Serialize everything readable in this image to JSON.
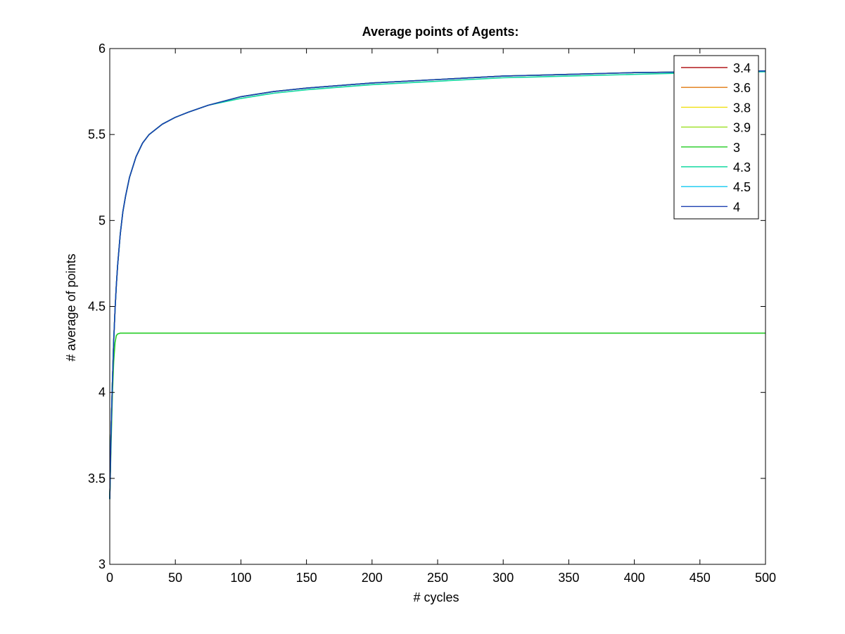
{
  "chart_data": {
    "type": "line",
    "title": "Average points of Agents:",
    "xlabel": "# cycles",
    "ylabel": "# average of points",
    "xlim": [
      0,
      500
    ],
    "ylim": [
      3,
      6
    ],
    "xticks": [
      0,
      50,
      100,
      150,
      200,
      250,
      300,
      350,
      400,
      450,
      500
    ],
    "yticks": [
      3,
      3.5,
      4,
      4.5,
      5,
      5.5,
      6
    ],
    "grid": false,
    "legend_position": "top-right",
    "x": [
      0,
      1,
      2,
      3,
      4,
      5,
      6,
      8,
      10,
      12,
      15,
      20,
      25,
      30,
      40,
      50,
      60,
      75,
      100,
      125,
      150,
      200,
      250,
      300,
      350,
      400,
      450,
      500
    ],
    "series": [
      {
        "name": "3.4",
        "color": "#b2181b",
        "values": [
          3.38,
          3.78,
          4.05,
          4.3,
          4.48,
          4.62,
          4.74,
          4.92,
          5.05,
          5.14,
          5.25,
          5.37,
          5.45,
          5.5,
          5.56,
          5.6,
          5.63,
          5.67,
          5.72,
          5.75,
          5.77,
          5.8,
          5.82,
          5.84,
          5.85,
          5.86,
          5.865,
          5.87
        ]
      },
      {
        "name": "3.6",
        "color": "#e07a10",
        "values": [
          3.38,
          3.78,
          4.05,
          4.3,
          4.48,
          4.62,
          4.74,
          4.92,
          5.05,
          5.14,
          5.25,
          5.37,
          5.45,
          5.5,
          5.56,
          5.6,
          5.63,
          5.67,
          5.72,
          5.75,
          5.77,
          5.8,
          5.82,
          5.84,
          5.85,
          5.86,
          5.865,
          5.87
        ]
      },
      {
        "name": "3.8",
        "color": "#f0e010",
        "values": [
          3.38,
          3.78,
          4.05,
          4.3,
          4.48,
          4.62,
          4.74,
          4.92,
          5.05,
          5.14,
          5.25,
          5.37,
          5.45,
          5.5,
          5.56,
          5.6,
          5.63,
          5.67,
          5.72,
          5.75,
          5.77,
          5.8,
          5.82,
          5.84,
          5.85,
          5.86,
          5.865,
          5.87
        ]
      },
      {
        "name": "3.9",
        "color": "#9be020",
        "values": [
          3.38,
          3.78,
          4.05,
          4.3,
          4.48,
          4.62,
          4.74,
          4.92,
          5.05,
          5.14,
          5.25,
          5.37,
          5.45,
          5.5,
          5.56,
          5.6,
          5.63,
          5.67,
          5.72,
          5.75,
          5.77,
          5.8,
          5.82,
          5.84,
          5.85,
          5.86,
          5.865,
          5.87
        ]
      },
      {
        "name": "3",
        "color": "#22cc22",
        "values": [
          3.38,
          3.7,
          3.98,
          4.18,
          4.29,
          4.33,
          4.34,
          4.345,
          4.345,
          4.345,
          4.345,
          4.345,
          4.345,
          4.345,
          4.345,
          4.345,
          4.345,
          4.345,
          4.345,
          4.345,
          4.345,
          4.345,
          4.345,
          4.345,
          4.345,
          4.345,
          4.345,
          4.345
        ]
      },
      {
        "name": "4.3",
        "color": "#10d8a0",
        "values": [
          3.38,
          3.78,
          4.05,
          4.3,
          4.48,
          4.62,
          4.74,
          4.92,
          5.05,
          5.14,
          5.25,
          5.37,
          5.45,
          5.5,
          5.56,
          5.6,
          5.63,
          5.67,
          5.71,
          5.74,
          5.76,
          5.79,
          5.81,
          5.83,
          5.84,
          5.85,
          5.86,
          5.865
        ]
      },
      {
        "name": "4.5",
        "color": "#10c8f0",
        "values": [
          3.38,
          3.78,
          4.05,
          4.3,
          4.48,
          4.62,
          4.74,
          4.92,
          5.05,
          5.14,
          5.25,
          5.37,
          5.45,
          5.5,
          5.56,
          5.6,
          5.63,
          5.67,
          5.72,
          5.75,
          5.77,
          5.8,
          5.82,
          5.84,
          5.85,
          5.86,
          5.865,
          5.87
        ]
      },
      {
        "name": "4",
        "color": "#1a3fb0",
        "values": [
          3.38,
          3.78,
          4.05,
          4.3,
          4.48,
          4.62,
          4.74,
          4.92,
          5.05,
          5.14,
          5.25,
          5.37,
          5.45,
          5.5,
          5.56,
          5.6,
          5.63,
          5.67,
          5.72,
          5.75,
          5.77,
          5.8,
          5.82,
          5.84,
          5.85,
          5.86,
          5.865,
          5.87
        ]
      }
    ]
  }
}
